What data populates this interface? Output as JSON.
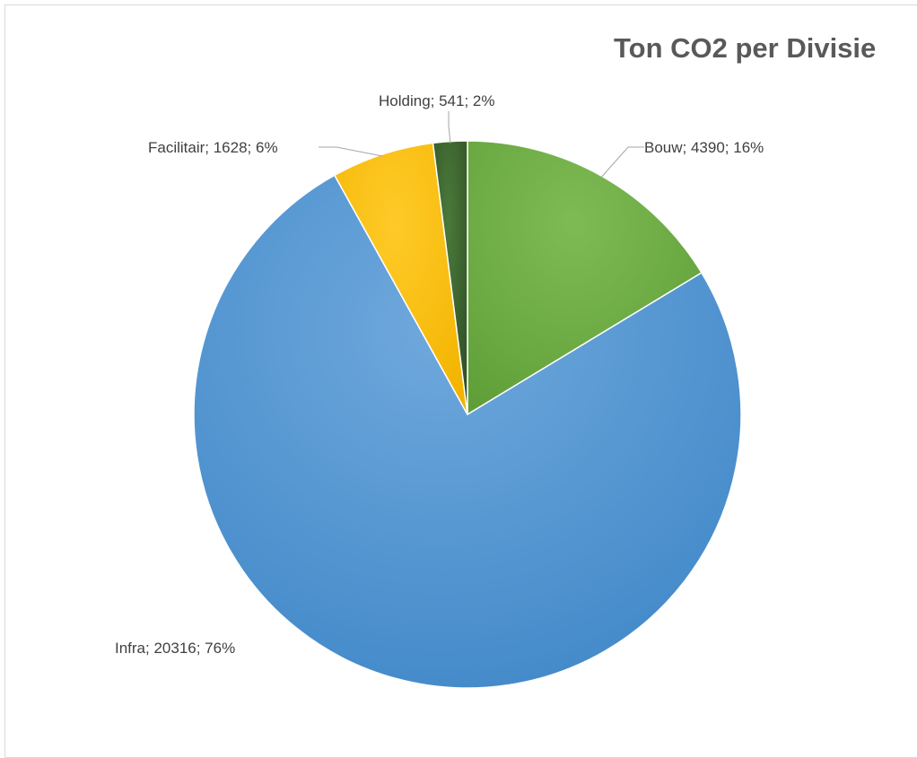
{
  "chart_data": {
    "type": "pie",
    "title": "Ton CO2 per Divisie",
    "slices": [
      {
        "name": "Bouw",
        "value": 4390,
        "percent": "16%",
        "label": "Bouw; 4390; 16%",
        "color": "#70ad47"
      },
      {
        "name": "Infra",
        "value": 20316,
        "percent": "76%",
        "label": "Infra; 20316; 76%",
        "color": "#5b9bd5"
      },
      {
        "name": "Facilitair",
        "value": 1628,
        "percent": "6%",
        "label": "Facilitair; 1628; 6%",
        "color": "#ffc000"
      },
      {
        "name": "Holding",
        "value": 541,
        "percent": "2%",
        "label": "Holding; 541; 2%",
        "color": "#375623"
      }
    ]
  }
}
